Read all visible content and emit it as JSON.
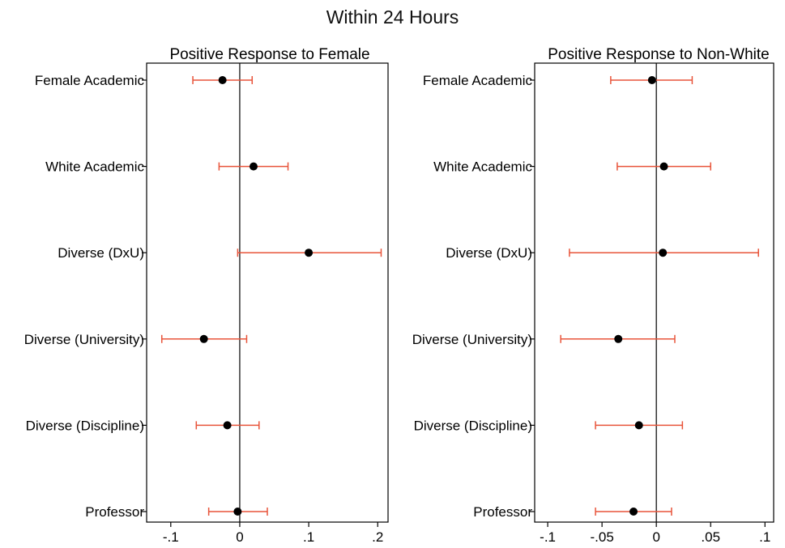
{
  "figure_title": "Within 24 Hours",
  "colors": {
    "ci": "#e8543a",
    "point": "#000000",
    "frame": "#000000",
    "zero_line": "#000000"
  },
  "chart_data": [
    {
      "type": "scatter",
      "title": "Positive Response to Female",
      "categories": [
        "Female Academic",
        "White Academic",
        "Diverse (DxU)",
        "Diverse (University)",
        "Diverse (Discipline)",
        "Professor"
      ],
      "estimates": [
        -0.025,
        0.02,
        0.1,
        -0.052,
        -0.018,
        -0.003
      ],
      "ci_low": [
        -0.068,
        -0.03,
        -0.003,
        -0.113,
        -0.063,
        -0.045
      ],
      "ci_high": [
        0.018,
        0.07,
        0.205,
        0.01,
        0.028,
        0.04
      ],
      "xlim": [
        -0.135,
        0.215
      ],
      "xticks": [
        -0.1,
        0,
        0.1,
        0.2
      ],
      "xtick_labels": [
        "-.1",
        "0",
        ".1",
        ".2"
      ],
      "reference_line": 0,
      "grid": false
    },
    {
      "type": "scatter",
      "title": "Positive Response to Non-White",
      "categories": [
        "Female Academic",
        "White Academic",
        "Diverse (DxU)",
        "Diverse (University)",
        "Diverse (Discipline)",
        "Professor"
      ],
      "estimates": [
        -0.004,
        0.007,
        0.006,
        -0.035,
        -0.016,
        -0.021
      ],
      "ci_low": [
        -0.042,
        -0.036,
        -0.08,
        -0.088,
        -0.056,
        -0.056
      ],
      "ci_high": [
        0.033,
        0.05,
        0.094,
        0.017,
        0.024,
        0.014
      ],
      "xlim": [
        -0.112,
        0.108
      ],
      "xticks": [
        -0.1,
        -0.05,
        0,
        0.05,
        0.1
      ],
      "xtick_labels": [
        "-.1",
        "-.05",
        "0",
        ".05",
        ".1"
      ],
      "reference_line": 0,
      "grid": false
    }
  ]
}
